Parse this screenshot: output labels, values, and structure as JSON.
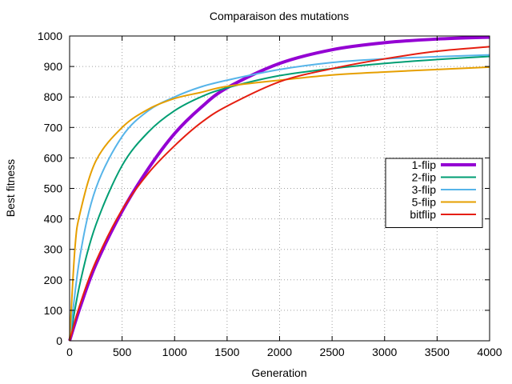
{
  "chart_data": {
    "type": "line",
    "title": "Comparaison des mutations",
    "xlabel": "Generation",
    "ylabel": "Best fitness",
    "xlim": [
      0,
      4000
    ],
    "ylim": [
      0,
      1000
    ],
    "xticks": [
      0,
      500,
      1000,
      1500,
      2000,
      2500,
      3000,
      3500,
      4000
    ],
    "yticks": [
      0,
      100,
      200,
      300,
      400,
      500,
      600,
      700,
      800,
      900,
      1000
    ],
    "grid": true,
    "legend_position": "right",
    "series": [
      {
        "name": "1-flip",
        "color": "#9400d3",
        "width": 4,
        "x": [
          0,
          100,
          250,
          500,
          750,
          1000,
          1250,
          1500,
          2000,
          2500,
          3000,
          3500,
          4000
        ],
        "y": [
          0,
          110,
          250,
          425,
          565,
          680,
          765,
          830,
          910,
          955,
          978,
          990,
          996
        ]
      },
      {
        "name": "2-flip",
        "color": "#009e73",
        "width": 2,
        "x": [
          0,
          100,
          250,
          500,
          750,
          1000,
          1250,
          1500,
          2000,
          2500,
          3000,
          3500,
          4000
        ],
        "y": [
          0,
          190,
          380,
          575,
          685,
          755,
          800,
          830,
          870,
          893,
          910,
          923,
          933
        ]
      },
      {
        "name": "3-flip",
        "color": "#56b4e9",
        "width": 2,
        "x": [
          0,
          100,
          250,
          500,
          750,
          1000,
          1250,
          1500,
          2000,
          2500,
          3000,
          3500,
          4000
        ],
        "y": [
          0,
          280,
          500,
          670,
          755,
          800,
          833,
          855,
          890,
          913,
          925,
          932,
          938
        ]
      },
      {
        "name": "5-flip",
        "color": "#e69f00",
        "width": 2,
        "x": [
          0,
          50,
          100,
          250,
          500,
          750,
          1000,
          1250,
          1500,
          2000,
          2500,
          3000,
          3500,
          4000
        ],
        "y": [
          0,
          300,
          420,
          590,
          700,
          760,
          795,
          815,
          835,
          855,
          872,
          882,
          890,
          898
        ]
      },
      {
        "name": "bitflip",
        "color": "#e51e10",
        "width": 2,
        "x": [
          0,
          100,
          250,
          500,
          750,
          1000,
          1250,
          1500,
          2000,
          2500,
          3000,
          3500,
          4000
        ],
        "y": [
          0,
          120,
          260,
          430,
          550,
          640,
          715,
          770,
          850,
          893,
          925,
          950,
          965
        ]
      }
    ]
  }
}
